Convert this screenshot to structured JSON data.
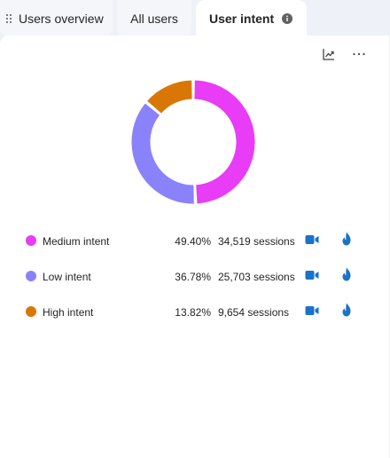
{
  "tabs": [
    {
      "label": "Users overview",
      "active": false
    },
    {
      "label": "All users",
      "active": false
    },
    {
      "label": "User intent",
      "active": true
    }
  ],
  "card": {
    "actions": [
      "trend-chart-icon",
      "more-options-icon"
    ],
    "more_label": "···"
  },
  "chart_data": {
    "type": "pie",
    "style": "donut",
    "categories": [
      "Medium intent",
      "Low intent",
      "High intent"
    ],
    "values": [
      49.4,
      36.78,
      13.82
    ],
    "colors": [
      "#e83cf6",
      "#8a82fb",
      "#d97706"
    ],
    "sessions": [
      34519,
      25703,
      9654
    ]
  },
  "legend": [
    {
      "label": "Medium intent",
      "percent": "49.40%",
      "sessions": "34,519 sessions",
      "color": "#e83cf6"
    },
    {
      "label": "Low intent",
      "percent": "36.78%",
      "sessions": "25,703 sessions",
      "color": "#8a82fb"
    },
    {
      "label": "High intent",
      "percent": "13.82%",
      "sessions": "9,654 sessions",
      "color": "#d97706"
    }
  ],
  "icon_color": "#1a73c9"
}
